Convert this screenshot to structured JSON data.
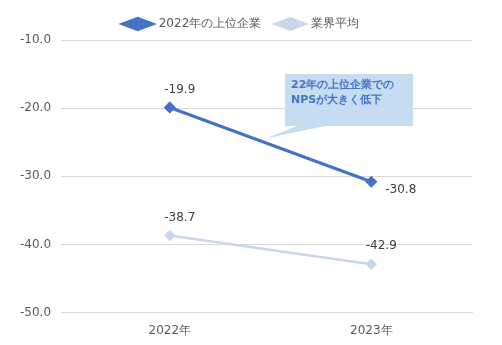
{
  "chart_data": {
    "type": "line",
    "categories": [
      "2022年",
      "2023年"
    ],
    "series": [
      {
        "name": "2022年の上位企業",
        "color": "#4472c4",
        "values": [
          -19.9,
          -30.8
        ],
        "marker": "diamond",
        "line_style": "solid"
      },
      {
        "name": "業界平均",
        "color": "#c9d6ee",
        "values": [
          -38.7,
          -42.9
        ],
        "marker": "diamond",
        "line_style": "solid"
      }
    ],
    "ylim": [
      -50,
      -10
    ],
    "yticks": [
      {
        "value": -10,
        "label": "-10.0"
      },
      {
        "value": -20,
        "label": "-20.0"
      },
      {
        "value": -30,
        "label": "-30.0"
      },
      {
        "value": -40,
        "label": "-40.0"
      },
      {
        "value": -50,
        "label": "-50.0"
      }
    ],
    "grid": true,
    "legend": "top",
    "data_labels": true,
    "annotations": [
      {
        "text": [
          "22年の上位企業での",
          "NPSが大きく低下"
        ]
      }
    ]
  }
}
